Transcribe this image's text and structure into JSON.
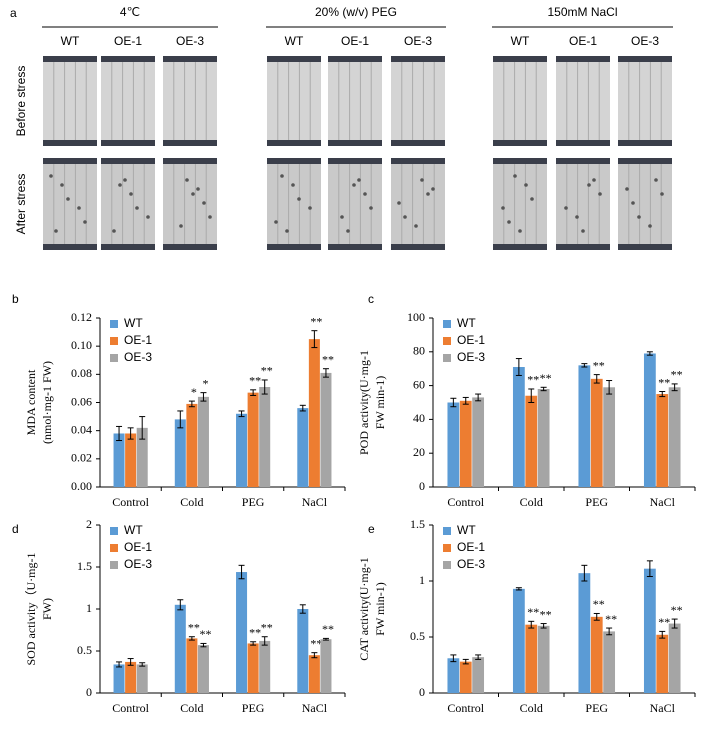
{
  "panel_a": {
    "label": "a",
    "groups": [
      "4℃",
      "20% (w/v) PEG",
      "150mM NaCl"
    ],
    "columns": [
      "WT",
      "OE-1",
      "OE-3"
    ],
    "rows": [
      "Before stress",
      "After stress"
    ]
  },
  "chart_data": [
    {
      "type": "bar",
      "label": "b",
      "ylabel": [
        "MDA content",
        "(nmol·mg-1 FW)"
      ],
      "categories": [
        "Control",
        "Cold",
        "PEG",
        "NaCl"
      ],
      "ylim": [
        0,
        0.12
      ],
      "yticks": [
        {
          "value": 0,
          "label": "0.00"
        },
        {
          "value": 0.02,
          "label": "0.02"
        },
        {
          "value": 0.04,
          "label": "0.04"
        },
        {
          "value": 0.06,
          "label": "0.06"
        },
        {
          "value": 0.08,
          "label": "0.08"
        },
        {
          "value": 0.1,
          "label": "0.10"
        },
        {
          "value": 0.12,
          "label": "0.12"
        }
      ],
      "series": [
        {
          "name": "WT",
          "color": "#5b9bd5",
          "values": [
            0.038,
            0.048,
            0.052,
            0.056
          ],
          "errors": [
            0.005,
            0.006,
            0.002,
            0.002
          ],
          "significance": [
            null,
            null,
            null,
            null
          ]
        },
        {
          "name": "OE-1",
          "color": "#ed7d31",
          "values": [
            0.038,
            0.059,
            0.067,
            0.105
          ],
          "errors": [
            0.004,
            0.002,
            0.002,
            0.006
          ],
          "significance": [
            null,
            "*",
            "**",
            "**"
          ]
        },
        {
          "name": "OE-3",
          "color": "#a5a5a5",
          "values": [
            0.042,
            0.064,
            0.071,
            0.081
          ],
          "errors": [
            0.008,
            0.003,
            0.005,
            0.003
          ],
          "significance": [
            null,
            "*",
            "**",
            "**"
          ]
        }
      ]
    },
    {
      "type": "bar",
      "label": "c",
      "ylabel": [
        "POD activity(U·mg-1",
        "FW min-1)"
      ],
      "categories": [
        "Control",
        "Cold",
        "PEG",
        "NaCl"
      ],
      "ylim": [
        0,
        100
      ],
      "yticks": [
        0,
        20,
        40,
        60,
        80,
        100
      ],
      "series": [
        {
          "name": "WT",
          "color": "#5b9bd5",
          "values": [
            50,
            71,
            72,
            79
          ],
          "errors": [
            2.5,
            5,
            1,
            1
          ],
          "significance": [
            null,
            null,
            null,
            null
          ]
        },
        {
          "name": "OE-1",
          "color": "#ed7d31",
          "values": [
            51,
            54,
            64,
            55
          ],
          "errors": [
            2,
            4,
            2.5,
            1.5
          ],
          "significance": [
            null,
            "**",
            "**",
            "**"
          ]
        },
        {
          "name": "OE-3",
          "color": "#a5a5a5",
          "values": [
            53,
            58,
            59,
            59
          ],
          "errors": [
            2,
            1,
            4,
            2
          ],
          "significance": [
            null,
            "**",
            null,
            "**"
          ]
        }
      ]
    },
    {
      "type": "bar",
      "label": "d",
      "ylabel": [
        "SOD activity（U·mg-1",
        "FW)"
      ],
      "categories": [
        "Control",
        "Cold",
        "PEG",
        "NaCl"
      ],
      "ylim": [
        0,
        2
      ],
      "yticks": [
        0,
        0.5,
        1,
        1.5,
        2
      ],
      "series": [
        {
          "name": "WT",
          "color": "#5b9bd5",
          "values": [
            0.34,
            1.05,
            1.44,
            1.0
          ],
          "errors": [
            0.03,
            0.06,
            0.08,
            0.05
          ],
          "significance": [
            null,
            null,
            null,
            null
          ]
        },
        {
          "name": "OE-1",
          "color": "#ed7d31",
          "values": [
            0.37,
            0.65,
            0.59,
            0.45
          ],
          "errors": [
            0.04,
            0.02,
            0.02,
            0.03
          ],
          "significance": [
            null,
            "**",
            "**",
            "**"
          ]
        },
        {
          "name": "OE-3",
          "color": "#a5a5a5",
          "values": [
            0.34,
            0.57,
            0.62,
            0.64
          ],
          "errors": [
            0.02,
            0.02,
            0.05,
            0.01
          ],
          "significance": [
            null,
            "**",
            "**",
            "**"
          ]
        }
      ]
    },
    {
      "type": "bar",
      "label": "e",
      "ylabel": [
        "CAT activity(U·mg-1",
        "FW min-1)"
      ],
      "categories": [
        "Control",
        "Cold",
        "PEG",
        "NaCl"
      ],
      "ylim": [
        0,
        1.5
      ],
      "yticks": [
        0,
        0.5,
        1,
        1.5
      ],
      "series": [
        {
          "name": "WT",
          "color": "#5b9bd5",
          "values": [
            0.31,
            0.93,
            1.07,
            1.11
          ],
          "errors": [
            0.03,
            0.01,
            0.07,
            0.07
          ],
          "significance": [
            null,
            null,
            null,
            null
          ]
        },
        {
          "name": "OE-1",
          "color": "#ed7d31",
          "values": [
            0.28,
            0.61,
            0.68,
            0.52
          ],
          "errors": [
            0.02,
            0.03,
            0.03,
            0.03
          ],
          "significance": [
            null,
            "**",
            "**",
            "**"
          ]
        },
        {
          "name": "OE-3",
          "color": "#a5a5a5",
          "values": [
            0.32,
            0.6,
            0.55,
            0.62
          ],
          "errors": [
            0.02,
            0.02,
            0.03,
            0.04
          ],
          "significance": [
            null,
            "**",
            "**",
            "**"
          ]
        }
      ]
    }
  ]
}
